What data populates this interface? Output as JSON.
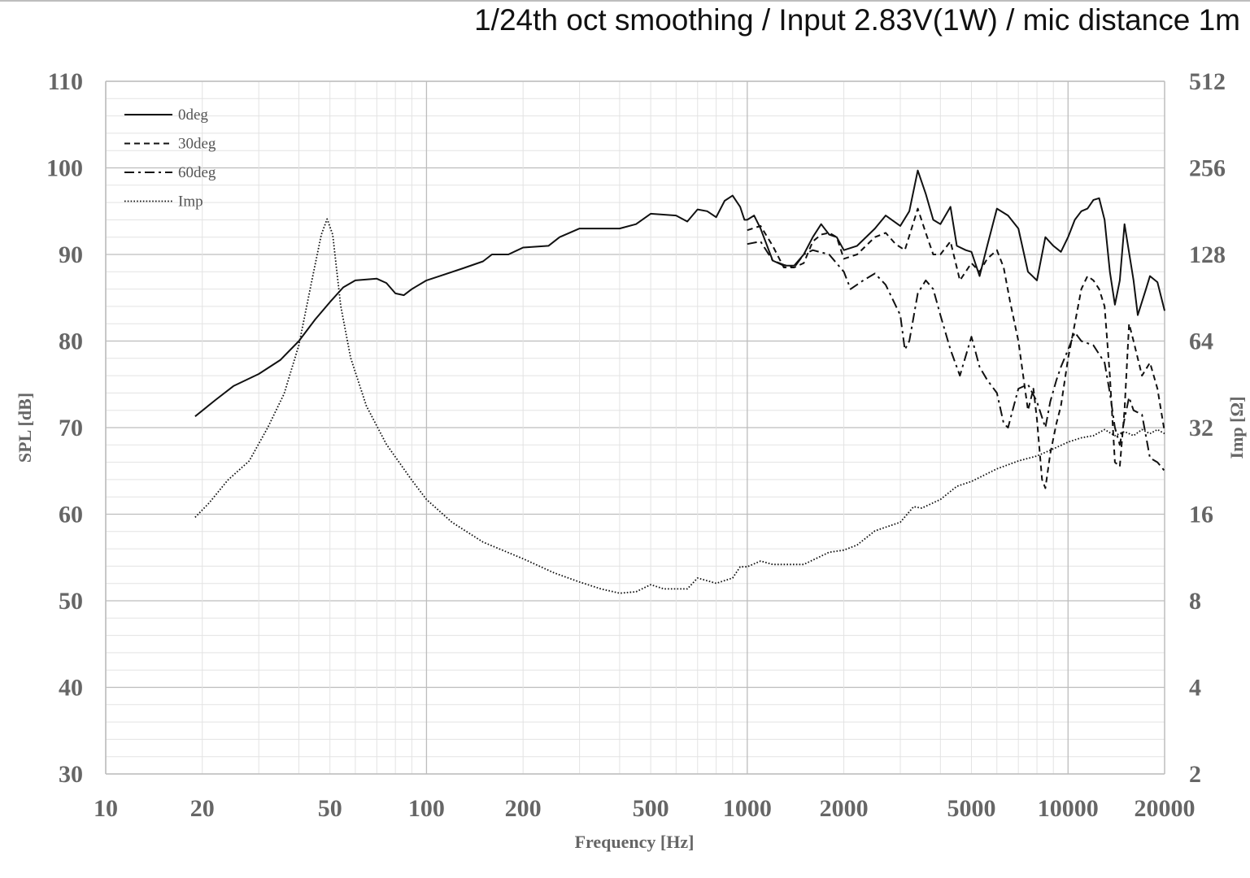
{
  "chart_data": {
    "type": "line",
    "subtitle": "1/24th oct smoothing / Input 2.83V(1W) / mic distance 1m",
    "xlabel": "Frequency [Hz]",
    "ylabel_left": "SPL [dB]",
    "ylabel_right": "Imp [Ω]",
    "x_scale": "log",
    "xlim": [
      10,
      20000
    ],
    "ylim": [
      30,
      110
    ],
    "y2_scale": "log2",
    "y2lim": [
      2,
      512
    ],
    "x_ticks": [
      "10",
      "20",
      "50",
      "100",
      "200",
      "500",
      "1000",
      "2000",
      "5000",
      "10000",
      "20000"
    ],
    "y_ticks": [
      "30",
      "40",
      "50",
      "60",
      "70",
      "80",
      "90",
      "100",
      "110"
    ],
    "y2_ticks": [
      "2",
      "4",
      "8",
      "16",
      "32",
      "64",
      "128",
      "256",
      "512"
    ],
    "grid": true,
    "legend_position": "top-left",
    "series": [
      {
        "name": "0deg",
        "axis": "left",
        "dash": "solid",
        "points": [
          [
            19,
            71.3
          ],
          [
            22,
            73.2
          ],
          [
            25,
            74.8
          ],
          [
            30,
            76.2
          ],
          [
            35,
            77.8
          ],
          [
            40,
            80
          ],
          [
            45,
            82.5
          ],
          [
            50,
            84.5
          ],
          [
            55,
            86.2
          ],
          [
            60,
            87
          ],
          [
            70,
            87.2
          ],
          [
            75,
            86.7
          ],
          [
            80,
            85.5
          ],
          [
            85,
            85.3
          ],
          [
            90,
            86
          ],
          [
            100,
            87
          ],
          [
            110,
            87.5
          ],
          [
            130,
            88.4
          ],
          [
            150,
            89.2
          ],
          [
            160,
            90
          ],
          [
            180,
            90
          ],
          [
            200,
            90.8
          ],
          [
            240,
            91
          ],
          [
            260,
            92
          ],
          [
            300,
            93
          ],
          [
            350,
            93
          ],
          [
            400,
            93
          ],
          [
            450,
            93.5
          ],
          [
            500,
            94.7
          ],
          [
            600,
            94.5
          ],
          [
            650,
            93.8
          ],
          [
            700,
            95.2
          ],
          [
            750,
            95
          ],
          [
            800,
            94.3
          ],
          [
            850,
            96.2
          ],
          [
            900,
            96.8
          ],
          [
            950,
            95.5
          ],
          [
            980,
            94
          ],
          [
            1000,
            94
          ],
          [
            1050,
            94.5
          ],
          [
            1100,
            93
          ],
          [
            1200,
            89.3
          ],
          [
            1300,
            88.7
          ],
          [
            1400,
            88.7
          ],
          [
            1500,
            90
          ],
          [
            1600,
            92
          ],
          [
            1700,
            93.5
          ],
          [
            1800,
            92.3
          ],
          [
            1900,
            92
          ],
          [
            2000,
            90.5
          ],
          [
            2200,
            91
          ],
          [
            2500,
            93
          ],
          [
            2700,
            94.5
          ],
          [
            3000,
            93.3
          ],
          [
            3200,
            95
          ],
          [
            3400,
            99.7
          ],
          [
            3600,
            97
          ],
          [
            3800,
            94
          ],
          [
            4000,
            93.5
          ],
          [
            4300,
            95.5
          ],
          [
            4500,
            91
          ],
          [
            4800,
            90.5
          ],
          [
            5000,
            90.3
          ],
          [
            5300,
            87.5
          ],
          [
            5600,
            91
          ],
          [
            6000,
            95.3
          ],
          [
            6500,
            94.5
          ],
          [
            7000,
            93
          ],
          [
            7500,
            88
          ],
          [
            8000,
            87
          ],
          [
            8500,
            92
          ],
          [
            9000,
            91
          ],
          [
            9500,
            90.3
          ],
          [
            10000,
            92
          ],
          [
            10500,
            94
          ],
          [
            11000,
            95
          ],
          [
            11500,
            95.3
          ],
          [
            12000,
            96.3
          ],
          [
            12500,
            96.5
          ],
          [
            13000,
            94
          ],
          [
            13500,
            88
          ],
          [
            14000,
            84.2
          ],
          [
            14500,
            87
          ],
          [
            15000,
            93.5
          ],
          [
            16000,
            87
          ],
          [
            16500,
            83
          ],
          [
            17500,
            86
          ],
          [
            18000,
            87.5
          ],
          [
            19000,
            86.8
          ],
          [
            20000,
            83.5
          ]
        ]
      },
      {
        "name": "30deg",
        "axis": "left",
        "dash": "dashed",
        "points": [
          [
            1000,
            92.8
          ],
          [
            1100,
            93.3
          ],
          [
            1200,
            91
          ],
          [
            1300,
            88.5
          ],
          [
            1400,
            88.5
          ],
          [
            1500,
            89
          ],
          [
            1600,
            91.5
          ],
          [
            1700,
            92.3
          ],
          [
            1800,
            92.5
          ],
          [
            1900,
            92
          ],
          [
            2000,
            89.5
          ],
          [
            2200,
            90
          ],
          [
            2500,
            92
          ],
          [
            2700,
            92.5
          ],
          [
            2900,
            91.2
          ],
          [
            3100,
            90.5
          ],
          [
            3400,
            95.3
          ],
          [
            3600,
            92.5
          ],
          [
            3800,
            90
          ],
          [
            4000,
            90
          ],
          [
            4300,
            91.5
          ],
          [
            4600,
            87
          ],
          [
            5000,
            89
          ],
          [
            5300,
            88
          ],
          [
            5600,
            89.5
          ],
          [
            6000,
            90.5
          ],
          [
            6300,
            88.5
          ],
          [
            6600,
            84.5
          ],
          [
            7000,
            80
          ],
          [
            7500,
            72
          ],
          [
            7800,
            74.5
          ],
          [
            8000,
            71
          ],
          [
            8300,
            64
          ],
          [
            8500,
            63
          ],
          [
            8800,
            67
          ],
          [
            9200,
            70.5
          ],
          [
            9500,
            72.5
          ],
          [
            10000,
            78
          ],
          [
            10500,
            82
          ],
          [
            11000,
            86
          ],
          [
            11500,
            87.5
          ],
          [
            12000,
            87
          ],
          [
            12500,
            86
          ],
          [
            13000,
            84
          ],
          [
            13500,
            76
          ],
          [
            14000,
            66
          ],
          [
            14500,
            65.5
          ],
          [
            15000,
            72
          ],
          [
            15500,
            82
          ],
          [
            16000,
            80
          ],
          [
            17000,
            76
          ],
          [
            18000,
            77.5
          ],
          [
            19000,
            74.5
          ],
          [
            20000,
            69.5
          ]
        ]
      },
      {
        "name": "60deg",
        "axis": "left",
        "dash": "dashdot",
        "points": [
          [
            1000,
            91.2
          ],
          [
            1100,
            91.5
          ],
          [
            1200,
            89.3
          ],
          [
            1300,
            88.8
          ],
          [
            1400,
            88.5
          ],
          [
            1500,
            90
          ],
          [
            1600,
            90.5
          ],
          [
            1800,
            90
          ],
          [
            2000,
            88
          ],
          [
            2100,
            86
          ],
          [
            2300,
            87
          ],
          [
            2500,
            87.8
          ],
          [
            2700,
            86.5
          ],
          [
            3000,
            83
          ],
          [
            3100,
            79
          ],
          [
            3200,
            80
          ],
          [
            3400,
            85.5
          ],
          [
            3600,
            87
          ],
          [
            3800,
            86
          ],
          [
            4000,
            83
          ],
          [
            4300,
            79
          ],
          [
            4600,
            76
          ],
          [
            5000,
            80.5
          ],
          [
            5300,
            77
          ],
          [
            5600,
            75.5
          ],
          [
            6000,
            74
          ],
          [
            6300,
            70.5
          ],
          [
            6500,
            70
          ],
          [
            7000,
            74.5
          ],
          [
            7500,
            75
          ],
          [
            8000,
            73
          ],
          [
            8500,
            70
          ],
          [
            8800,
            73
          ],
          [
            9200,
            75.5
          ],
          [
            9500,
            77
          ],
          [
            10000,
            79
          ],
          [
            10500,
            81
          ],
          [
            11000,
            80
          ],
          [
            12000,
            79.5
          ],
          [
            13000,
            77.5
          ],
          [
            13500,
            74
          ],
          [
            14000,
            70
          ],
          [
            14500,
            68
          ],
          [
            15000,
            71
          ],
          [
            15500,
            73.5
          ],
          [
            16000,
            72
          ],
          [
            17000,
            71.5
          ],
          [
            18000,
            66.5
          ],
          [
            19000,
            66
          ],
          [
            20000,
            65
          ]
        ]
      },
      {
        "name": "Imp",
        "axis": "right",
        "dash": "dotted",
        "points": [
          [
            19,
            15.6
          ],
          [
            21,
            17.5
          ],
          [
            24,
            21
          ],
          [
            28,
            24.5
          ],
          [
            32,
            32
          ],
          [
            36,
            42
          ],
          [
            40,
            62
          ],
          [
            44,
            105
          ],
          [
            47,
            150
          ],
          [
            49,
            170
          ],
          [
            51,
            150
          ],
          [
            54,
            85
          ],
          [
            58,
            56
          ],
          [
            65,
            38
          ],
          [
            75,
            28
          ],
          [
            90,
            21
          ],
          [
            100,
            18
          ],
          [
            120,
            15
          ],
          [
            150,
            12.8
          ],
          [
            200,
            11.2
          ],
          [
            250,
            10
          ],
          [
            300,
            9.3
          ],
          [
            350,
            8.8
          ],
          [
            400,
            8.5
          ],
          [
            450,
            8.6
          ],
          [
            500,
            9.1
          ],
          [
            550,
            8.8
          ],
          [
            650,
            8.8
          ],
          [
            700,
            9.6
          ],
          [
            800,
            9.2
          ],
          [
            900,
            9.6
          ],
          [
            950,
            10.5
          ],
          [
            1000,
            10.5
          ],
          [
            1100,
            11
          ],
          [
            1200,
            10.7
          ],
          [
            1500,
            10.7
          ],
          [
            1800,
            11.8
          ],
          [
            2000,
            12
          ],
          [
            2200,
            12.5
          ],
          [
            2500,
            14
          ],
          [
            3000,
            15
          ],
          [
            3300,
            17
          ],
          [
            3500,
            16.8
          ],
          [
            4000,
            18
          ],
          [
            4500,
            20
          ],
          [
            5000,
            20.8
          ],
          [
            6000,
            23
          ],
          [
            7000,
            24.5
          ],
          [
            8000,
            25.5
          ],
          [
            9000,
            27
          ],
          [
            10000,
            28.5
          ],
          [
            11000,
            29.5
          ],
          [
            12000,
            30
          ],
          [
            13000,
            31.5
          ],
          [
            14000,
            30
          ],
          [
            15000,
            31
          ],
          [
            16000,
            30
          ],
          [
            17000,
            31.5
          ],
          [
            18000,
            30.5
          ],
          [
            19000,
            31.5
          ],
          [
            20000,
            30.5
          ]
        ]
      }
    ]
  }
}
